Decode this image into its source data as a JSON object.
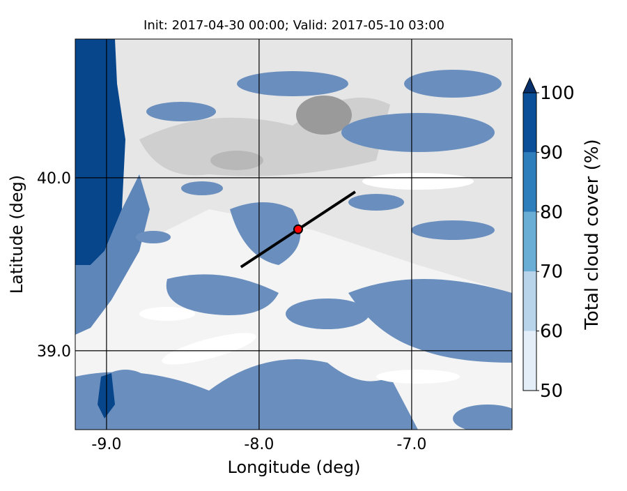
{
  "chart_data": {
    "type": "map",
    "title": "Init: 2017-04-30 00:00; Valid: 2017-05-10 03:00",
    "x_label": "Longitude (deg)",
    "y_label": "Latitude (deg)",
    "xlim": [
      -9.205,
      -6.342
    ],
    "ylim": [
      38.544,
      40.802
    ],
    "xticks": [
      {
        "value": -9,
        "label": "-9.0"
      },
      {
        "value": -8,
        "label": "-8.0"
      },
      {
        "value": -7,
        "label": "-7.0"
      }
    ],
    "yticks": [
      {
        "value": 39,
        "label": "39.0"
      },
      {
        "value": 40,
        "label": "40.0"
      }
    ],
    "grid": true,
    "transect": {
      "x": [
        -8.119,
        -7.37
      ],
      "y": [
        39.484,
        39.919
      ],
      "color": "#000000"
    },
    "point": {
      "x": -7.744,
      "y": 39.702,
      "color": "#ff0000"
    },
    "colorbar": {
      "label": "Total cloud cover (%)",
      "lim": [
        50,
        100
      ],
      "ticks": [
        50,
        60,
        70,
        80,
        90,
        100
      ],
      "colors": [
        "#e3eef8",
        "#b8d4ea",
        "#6aaed6",
        "#2f7ebc",
        "#0b4f98"
      ],
      "extend_color": "#08306b"
    }
  }
}
